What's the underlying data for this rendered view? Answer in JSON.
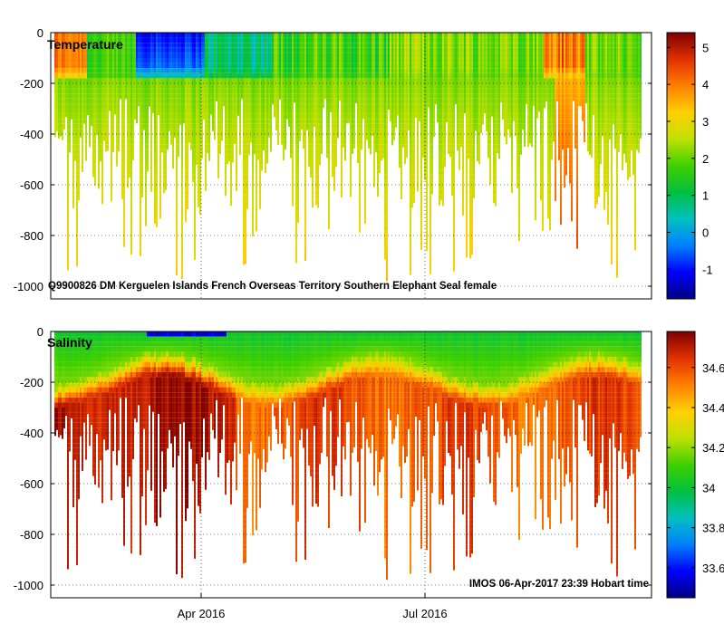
{
  "chart_data": [
    {
      "type": "heatmap",
      "title": "Temperature",
      "variable": "temperature",
      "ylim": [
        -1050,
        0
      ],
      "yticks": [
        0,
        -200,
        -400,
        -600,
        -800,
        -1000
      ],
      "ytick_labels": [
        "0",
        "-200",
        "-400",
        "-600",
        "-800",
        "-1000"
      ],
      "colorbar": {
        "range": [
          -1.8,
          5.4
        ],
        "ticks": [
          5,
          4,
          3,
          2,
          1,
          0,
          -1
        ],
        "tick_labels": [
          "5",
          "4",
          "3",
          "2",
          "1",
          "0",
          "-1"
        ],
        "colors": [
          "#000080",
          "#0000ff",
          "#0080ff",
          "#00c0c0",
          "#00c040",
          "#40d000",
          "#c0e000",
          "#ffd000",
          "#ff8000",
          "#e03000",
          "#800000"
        ]
      },
      "annotation": "Q9900826 DM Kerguelen Islands French Overseas Territory Southern Elephant Seal  female",
      "grid": true
    },
    {
      "type": "heatmap",
      "title": "Salinity",
      "variable": "salinity",
      "ylim": [
        -1050,
        0
      ],
      "yticks": [
        0,
        -200,
        -400,
        -600,
        -800,
        -1000
      ],
      "ytick_labels": [
        "0",
        "-200",
        "-400",
        "-600",
        "-800",
        "-1000"
      ],
      "xticks": [
        "Apr 2016",
        "Jul 2016"
      ],
      "colorbar": {
        "range": [
          33.45,
          34.78
        ],
        "ticks": [
          34.6,
          34.4,
          34.2,
          34.0,
          33.8,
          33.6
        ],
        "tick_labels": [
          "34.6",
          "34.4",
          "34.2",
          "34",
          "33.8",
          "33.6"
        ],
        "colors": [
          "#000080",
          "#0000ff",
          "#0080ff",
          "#00c0c0",
          "#00c040",
          "#40d000",
          "#c0e000",
          "#ffd000",
          "#ff8000",
          "#e03000",
          "#800000"
        ]
      },
      "annotation": "IMOS 06-Apr-2017 23:39 Hobart time",
      "grid": true
    }
  ]
}
